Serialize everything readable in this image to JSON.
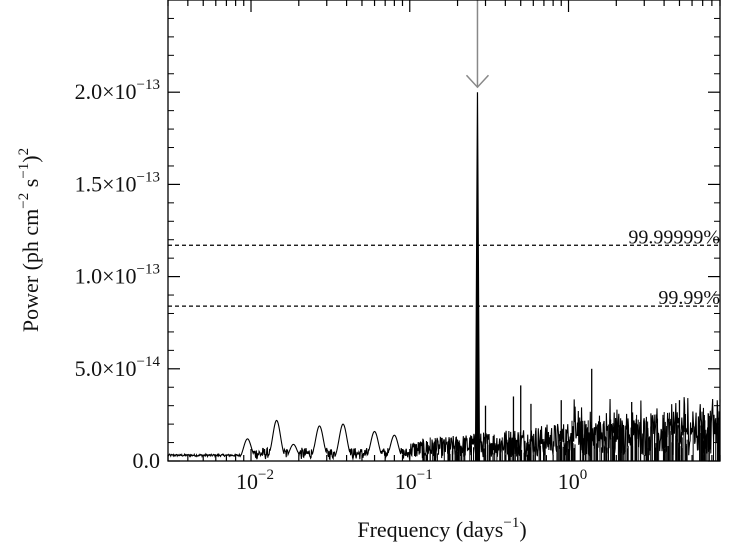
{
  "chart_data": {
    "type": "line",
    "x_scale": "log",
    "xlim": [
      0.003,
      9.0
    ],
    "ylim": [
      0,
      2.5e-13
    ],
    "xlabel": "Frequency (days",
    "xlabel_sup": "−1",
    "xlabel_end": ")",
    "ylabel": "Power (ph cm",
    "ylabel_sup1": "−2",
    "ylabel_mid": " s",
    "ylabel_sup2": "−1",
    "ylabel_end": ")",
    "ylabel_sup3": "2",
    "x_ticks": [
      {
        "value": 0.01,
        "base": "10",
        "exp": "−2"
      },
      {
        "value": 0.1,
        "base": "10",
        "exp": "−1"
      },
      {
        "value": 1,
        "base": "10",
        "exp": "0"
      }
    ],
    "y_ticks": [
      {
        "value": 0,
        "mant": "0.0",
        "exp": ""
      },
      {
        "value": 5e-14,
        "mant": "5.0×10",
        "exp": "−14"
      },
      {
        "value": 1e-13,
        "mant": "1.0×10",
        "exp": "−13"
      },
      {
        "value": 1.5e-13,
        "mant": "1.5×10",
        "exp": "−13"
      },
      {
        "value": 2e-13,
        "mant": "2.0×10",
        "exp": "−13"
      }
    ],
    "thresholds": [
      {
        "label": "99.99999%",
        "value": 1.17e-13
      },
      {
        "label": "99.99%",
        "value": 8.4e-14
      }
    ],
    "peak": {
      "frequency": 0.267,
      "power": 2e-13
    },
    "arrow_at_frequency": 0.267,
    "low_freq_bumps": [
      {
        "f": 0.0095,
        "p": 1.2e-14
      },
      {
        "f": 0.0145,
        "p": 2.2e-14
      },
      {
        "f": 0.0185,
        "p": 9e-15
      },
      {
        "f": 0.027,
        "p": 1.9e-14
      },
      {
        "f": 0.038,
        "p": 2e-14
      },
      {
        "f": 0.06,
        "p": 1.6e-14
      },
      {
        "f": 0.08,
        "p": 1.4e-14
      }
    ],
    "spikes": [
      {
        "f": 0.3,
        "p": 3e-14
      },
      {
        "f": 0.45,
        "p": 3.5e-14
      },
      {
        "f": 0.5,
        "p": 4.1e-14
      },
      {
        "f": 0.58,
        "p": 3.1e-14
      },
      {
        "f": 0.9,
        "p": 3.3e-14
      },
      {
        "f": 1.4,
        "p": 5e-14
      },
      {
        "f": 2.5,
        "p": 3.2e-14
      },
      {
        "f": 5.0,
        "p": 3.3e-14
      }
    ]
  }
}
